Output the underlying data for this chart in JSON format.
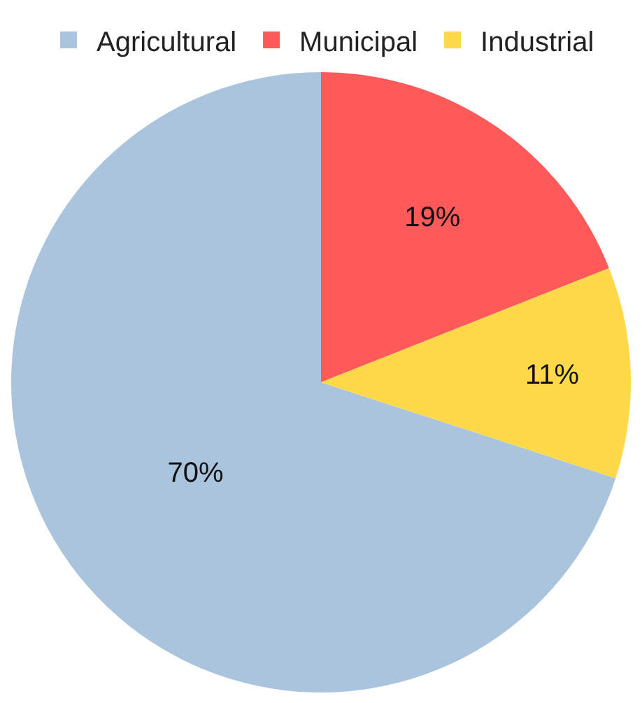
{
  "chart_data": {
    "type": "pie",
    "categories": [
      "Agricultural",
      "Municipal",
      "Industrial"
    ],
    "values": [
      70,
      19,
      11
    ],
    "value_labels": [
      "70%",
      "19%",
      "11%"
    ],
    "colors": [
      "#a9c4dc",
      "#ff5a5a",
      "#ffd94a"
    ],
    "legend": "top"
  }
}
